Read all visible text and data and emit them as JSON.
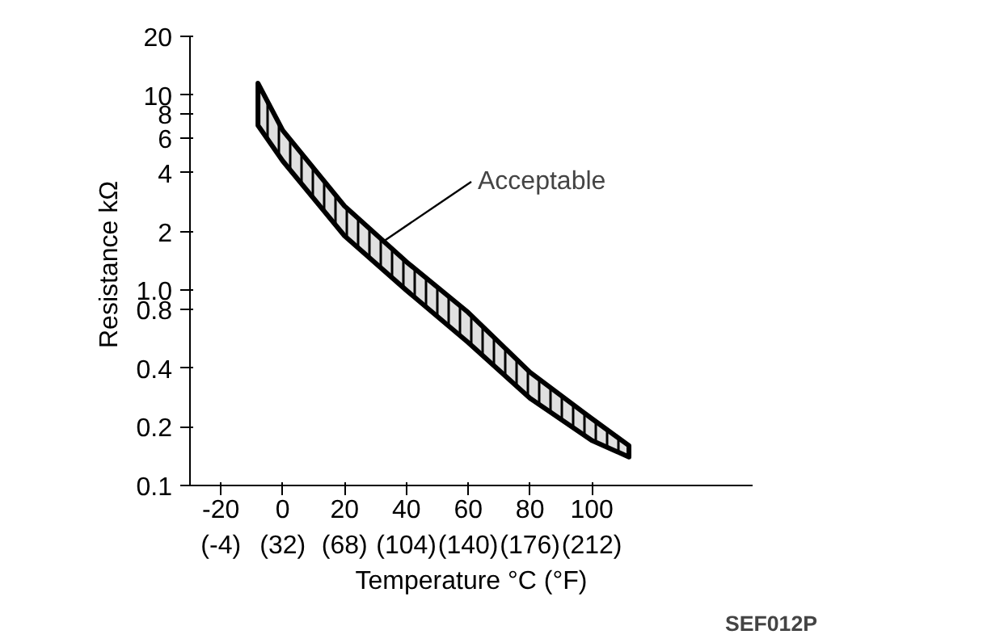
{
  "chart_data": {
    "type": "line",
    "xlabel": "Temperature °C (°F)",
    "ylabel": "Resistance  kΩ",
    "log": "y",
    "grid": false,
    "line_style": "solid",
    "x": [
      -8,
      0,
      20,
      40,
      60,
      80,
      100,
      112
    ],
    "series": [
      {
        "color": "#000000",
        "values": [
          null,
          null,
          null,
          null,
          null,
          null,
          null,
          null
        ],
        "upper": [
          11.5,
          6.6,
          2.7,
          1.4,
          0.77,
          0.38,
          0.22,
          0.16
        ],
        "lower": [
          7.0,
          4.6,
          1.9,
          1.0,
          0.54,
          0.28,
          0.17,
          0.14
        ]
      }
    ],
    "xlim": [
      -30,
      152
    ],
    "ylim": [
      0.1,
      20
    ],
    "xticks": [
      -20,
      0,
      20,
      40,
      60,
      80,
      100
    ],
    "x2lim": [
      -22,
      305.6
    ],
    "x2ticks": [
      {
        "value": -4,
        "label": "(-4)"
      },
      {
        "value": 32,
        "label": "(32)"
      },
      {
        "value": 68,
        "label": "(68)"
      },
      {
        "value": 104,
        "label": "(104)"
      },
      {
        "value": 140,
        "label": "(140)"
      },
      {
        "value": 176,
        "label": "(176)"
      },
      {
        "value": 212,
        "label": "(212)"
      }
    ],
    "yticks": [
      0.1,
      0.2,
      0.4,
      0.8,
      {
        "value": 1,
        "label": "1.0"
      },
      2,
      4,
      6,
      8,
      10,
      20
    ],
    "annotations": [
      {
        "text": "Acceptable",
        "x": 33,
        "y": 1.8
      },
      "SEF012P"
    ]
  }
}
